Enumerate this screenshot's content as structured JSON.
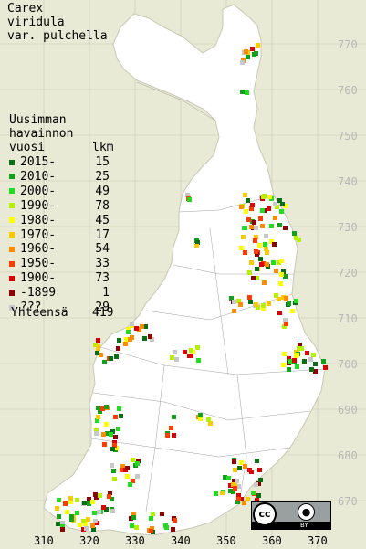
{
  "title": {
    "line1": "Carex",
    "line2": "viridula",
    "line3": "var. pulchella"
  },
  "legend": {
    "heading1": "Uusimman",
    "heading2": "havainnon",
    "col_year": "vuosi",
    "col_count": "lkm",
    "rows": [
      {
        "range": "2015-",
        "count": "15",
        "color": "#0a6e14"
      },
      {
        "range": "2010-",
        "count": "25",
        "color": "#12a21a"
      },
      {
        "range": "2000-",
        "count": "49",
        "color": "#22dc22"
      },
      {
        "range": "1990-",
        "count": "78",
        "color": "#b4f000"
      },
      {
        "range": "1980-",
        "count": "45",
        "color": "#ffff00"
      },
      {
        "range": "1970-",
        "count": "17",
        "color": "#ffc800"
      },
      {
        "range": "1960-",
        "count": "54",
        "color": "#ff8c00"
      },
      {
        "range": "1950-",
        "count": "33",
        "color": "#ff3c00"
      },
      {
        "range": "1900-",
        "count": "73",
        "color": "#dc0000"
      },
      {
        "range": "-1899",
        "count": "1",
        "color": "#8c0000"
      },
      {
        "range": "???",
        "count": "29",
        "color": "#c8c8c8"
      }
    ],
    "total_label": "Yhteensä",
    "total_count": "419"
  },
  "axes": {
    "y_ticks": [
      "770",
      "760",
      "750",
      "740",
      "730",
      "720",
      "710",
      "700",
      "690",
      "680",
      "670"
    ],
    "x_ticks": [
      "310",
      "320",
      "330",
      "340",
      "350",
      "360",
      "370"
    ]
  },
  "map_style": {
    "land_color": "#ffffff",
    "sea_color": "#e9ead5",
    "grid_color": "#c8c8b4",
    "border_color": "#a0a0a0"
  },
  "license": {
    "cc": "cc",
    "by_icon": "person-icon",
    "by": "BY"
  }
}
